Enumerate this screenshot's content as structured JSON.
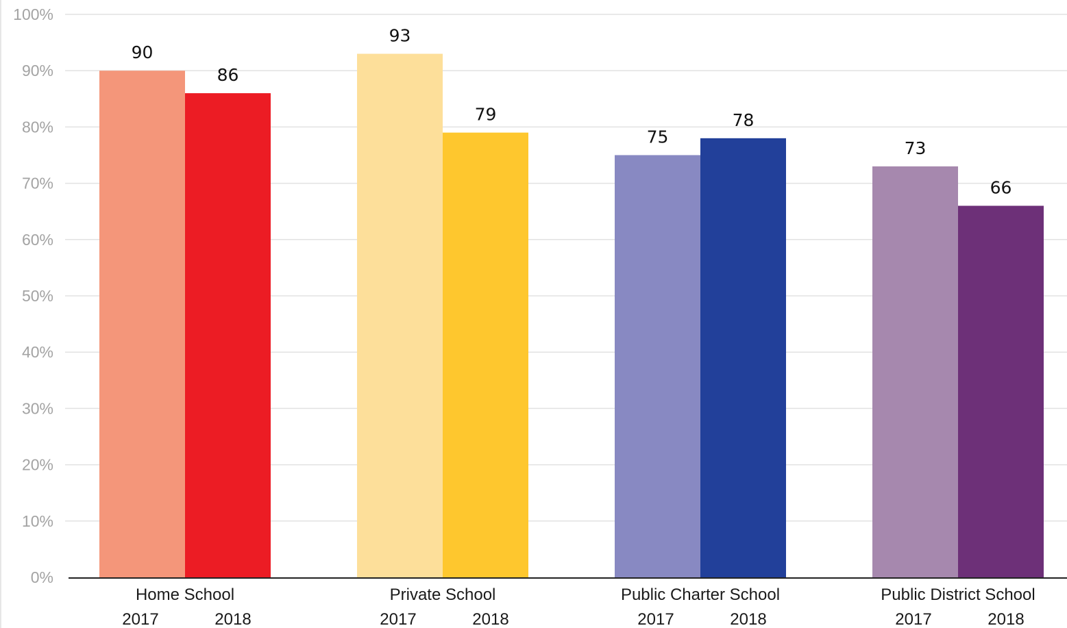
{
  "chart_data": {
    "type": "bar",
    "title": "",
    "xlabel": "",
    "ylabel": "",
    "ylim": [
      0,
      100
    ],
    "y_ticks": [
      "0%",
      "10%",
      "20%",
      "30%",
      "40%",
      "50%",
      "60%",
      "70%",
      "80%",
      "90%",
      "100%"
    ],
    "grid": true,
    "legend": "none",
    "categories": [
      "Home School",
      "Private School",
      "Public Charter School",
      "Public District School"
    ],
    "series": [
      {
        "name": "2017",
        "values": [
          90,
          93,
          75,
          73
        ],
        "colors": [
          "#f4967a",
          "#fddf9a",
          "#8889c2",
          "#a688ae"
        ]
      },
      {
        "name": "2018",
        "values": [
          86,
          79,
          78,
          66
        ],
        "colors": [
          "#ec1c24",
          "#fec72e",
          "#22409a",
          "#6d3078"
        ]
      }
    ],
    "value_labels": [
      [
        "90",
        "93",
        "75",
        "73"
      ],
      [
        "86",
        "79",
        "78",
        "66"
      ]
    ]
  },
  "colors": {
    "grid": "#e2e2e2",
    "axis": "#222222",
    "left_border": "#cccccc"
  }
}
